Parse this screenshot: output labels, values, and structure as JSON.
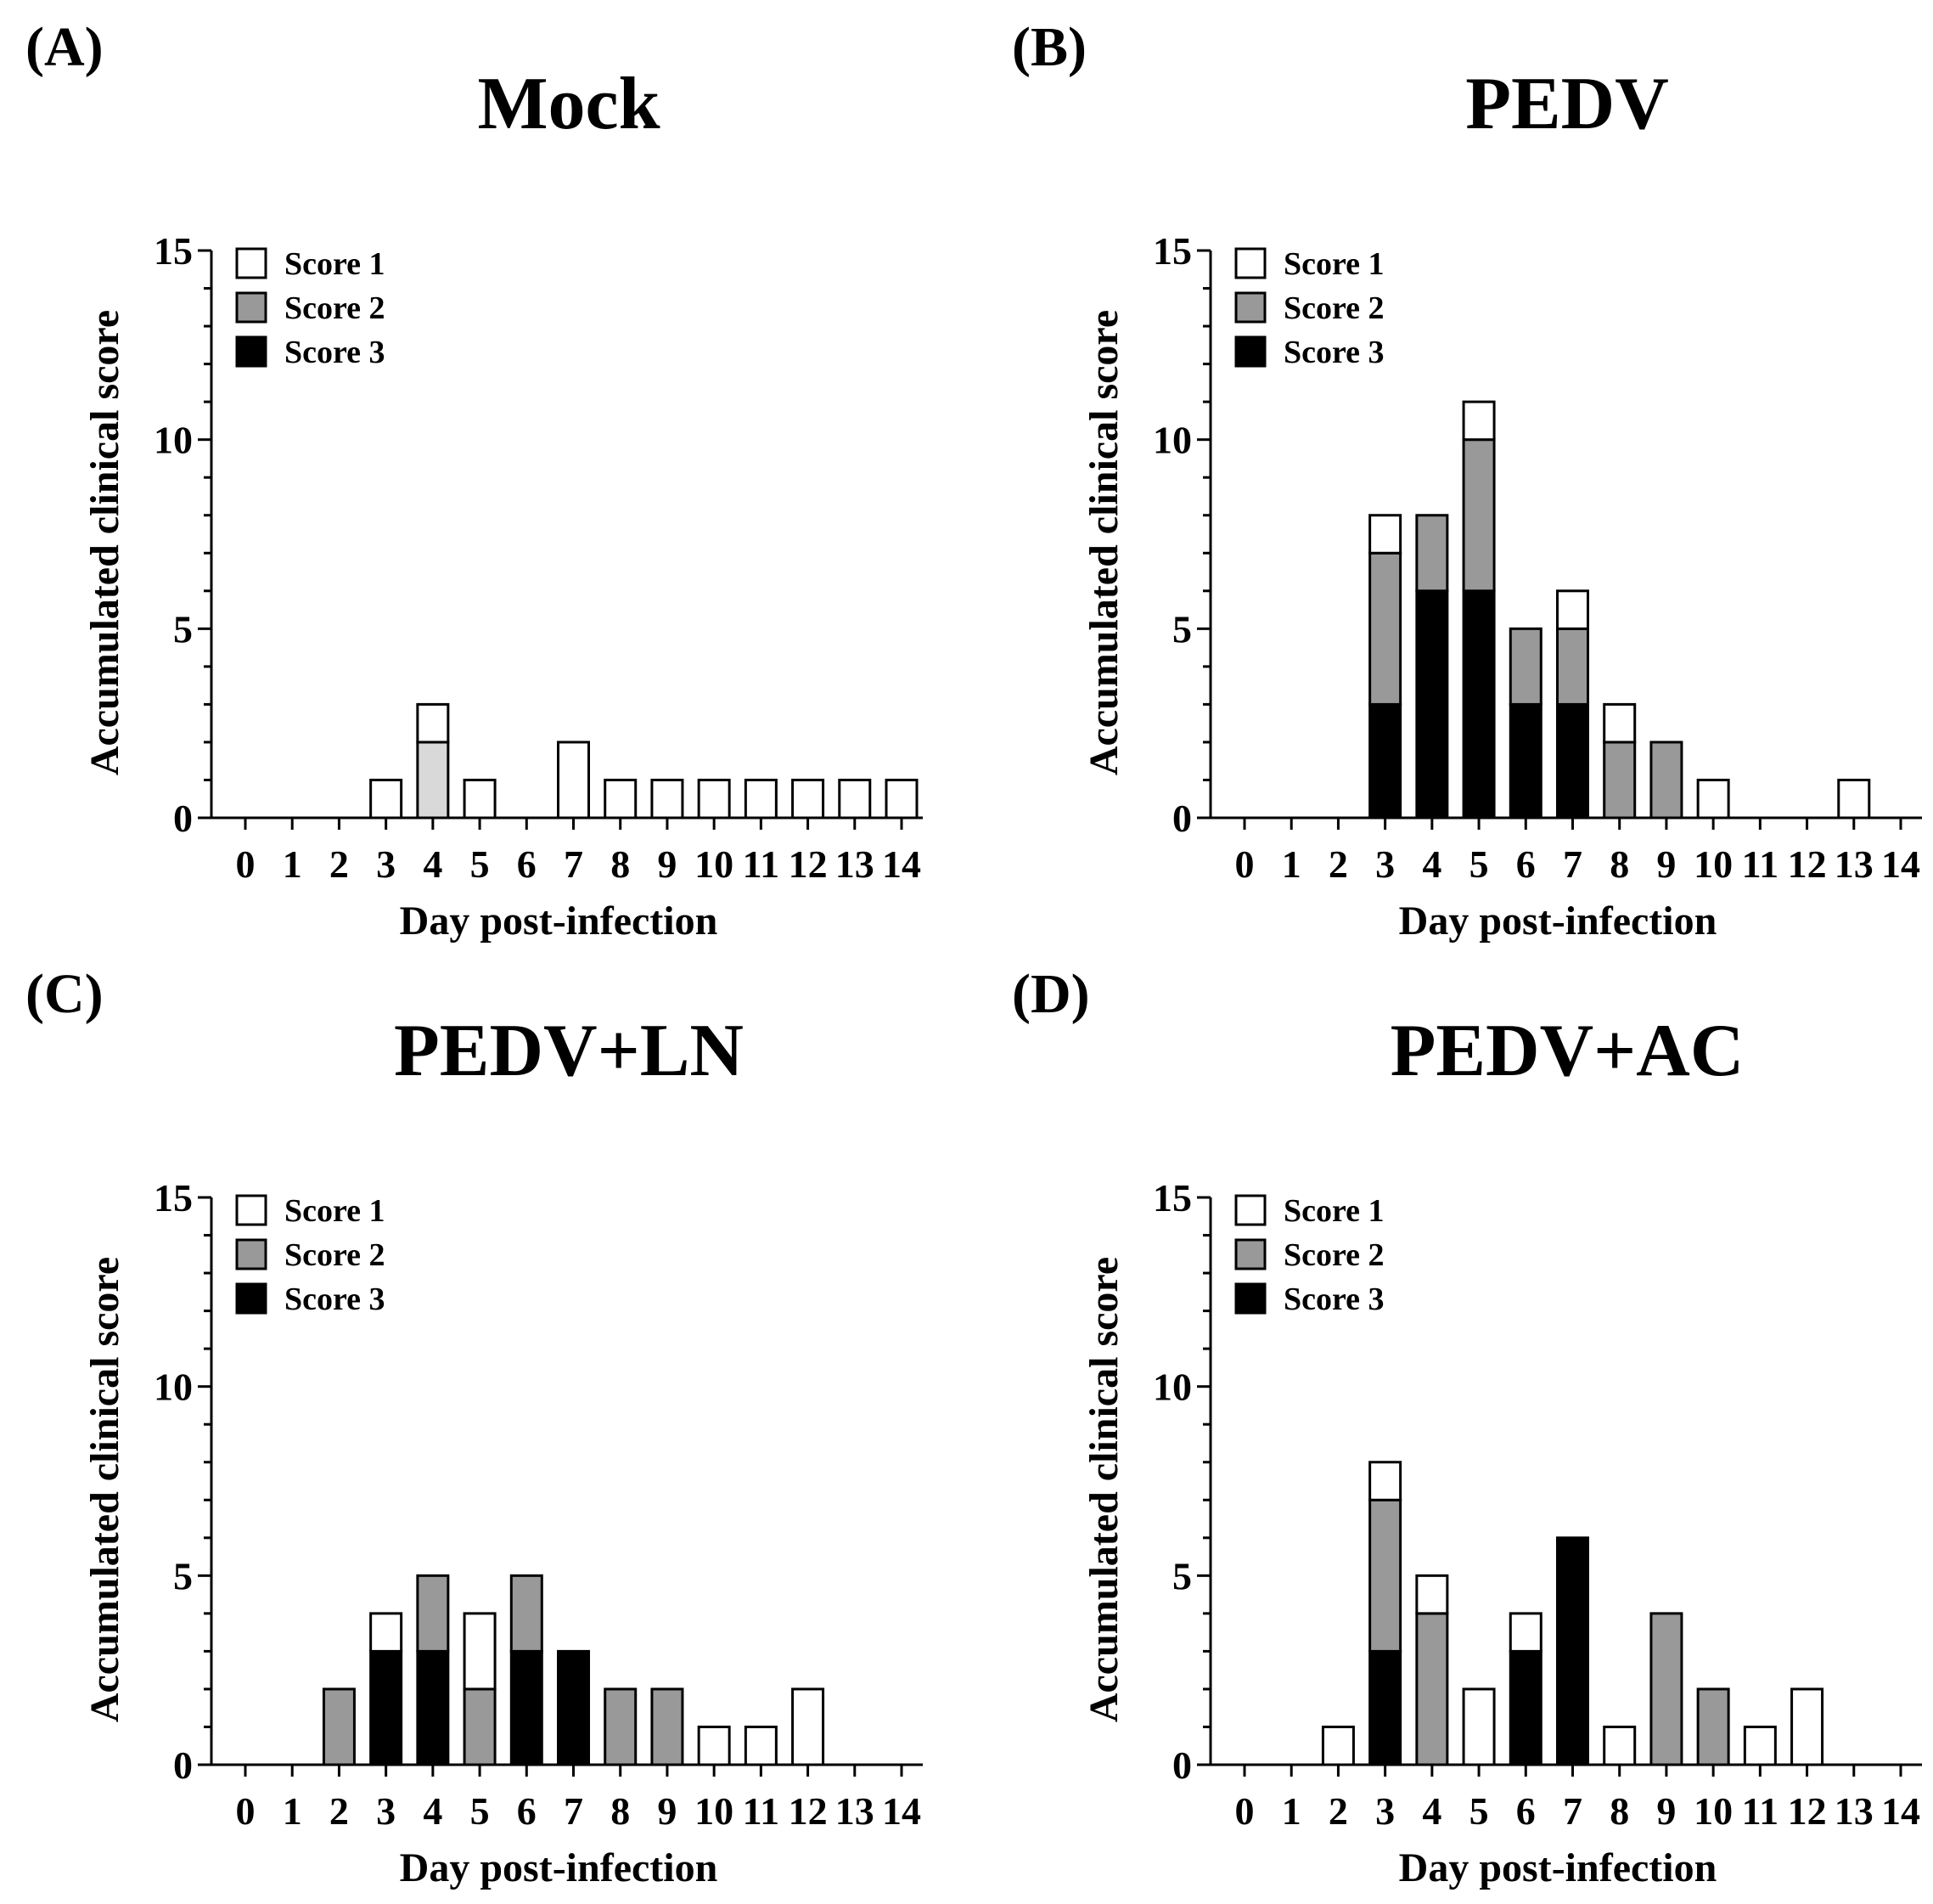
{
  "figure": {
    "panels": [
      {
        "letter": "(A)",
        "title": "Mock"
      },
      {
        "letter": "(B)",
        "title": "PEDV"
      },
      {
        "letter": "(C)",
        "title": "PEDV+LN"
      },
      {
        "letter": "(D)",
        "title": "PEDV+AC"
      }
    ]
  },
  "colors": {
    "score1": "#ffffff",
    "score2": "#999999",
    "score2_light": "#d9d9d9",
    "score3": "#000000",
    "stroke": "#000000"
  },
  "chart_data": [
    {
      "type": "bar",
      "stacked": true,
      "title": "Mock",
      "xlabel": "Day post-infection",
      "ylabel": "Accumulated clinical score",
      "ylim": [
        0,
        15
      ],
      "yticks": [
        0,
        5,
        10,
        15
      ],
      "categories": [
        "0",
        "1",
        "2",
        "3",
        "4",
        "5",
        "6",
        "7",
        "8",
        "9",
        "10",
        "11",
        "12",
        "13",
        "14"
      ],
      "legend": [
        "Score 1",
        "Score 2",
        "Score 3"
      ],
      "legend_position": "top-left",
      "series": [
        {
          "name": "Score 3",
          "values": [
            0,
            0,
            0,
            0,
            0,
            0,
            0,
            0,
            0,
            0,
            0,
            0,
            0,
            0,
            0
          ]
        },
        {
          "name": "Score 2",
          "values": [
            0,
            0,
            0,
            0,
            2,
            0,
            0,
            0,
            0,
            0,
            0,
            0,
            0,
            0,
            0
          ]
        },
        {
          "name": "Score 1",
          "values": [
            0,
            0,
            0,
            1,
            1,
            1,
            0,
            2,
            1,
            1,
            1,
            1,
            1,
            1,
            1
          ]
        }
      ]
    },
    {
      "type": "bar",
      "stacked": true,
      "title": "PEDV",
      "xlabel": "Day post-infection",
      "ylabel": "Accumulated clinical score",
      "ylim": [
        0,
        15
      ],
      "yticks": [
        0,
        5,
        10,
        15
      ],
      "categories": [
        "0",
        "1",
        "2",
        "3",
        "4",
        "5",
        "6",
        "7",
        "8",
        "9",
        "10",
        "11",
        "12",
        "13",
        "14"
      ],
      "legend": [
        "Score 1",
        "Score 2",
        "Score 3"
      ],
      "legend_position": "top-left",
      "series": [
        {
          "name": "Score 3",
          "values": [
            0,
            0,
            0,
            3,
            6,
            6,
            3,
            3,
            0,
            0,
            0,
            0,
            0,
            0,
            0
          ]
        },
        {
          "name": "Score 2",
          "values": [
            0,
            0,
            0,
            4,
            2,
            4,
            2,
            2,
            2,
            2,
            0,
            0,
            0,
            0,
            0
          ]
        },
        {
          "name": "Score 1",
          "values": [
            0,
            0,
            0,
            1,
            0,
            1,
            0,
            1,
            1,
            0,
            1,
            0,
            0,
            1,
            0
          ]
        }
      ]
    },
    {
      "type": "bar",
      "stacked": true,
      "title": "PEDV+LN",
      "xlabel": "Day post-infection",
      "ylabel": "Accumulated clinical score",
      "ylim": [
        0,
        15
      ],
      "yticks": [
        0,
        5,
        10,
        15
      ],
      "categories": [
        "0",
        "1",
        "2",
        "3",
        "4",
        "5",
        "6",
        "7",
        "8",
        "9",
        "10",
        "11",
        "12",
        "13",
        "14"
      ],
      "legend": [
        "Score 1",
        "Score 2",
        "Score 3"
      ],
      "legend_position": "top-left",
      "series": [
        {
          "name": "Score 3",
          "values": [
            0,
            0,
            0,
            3,
            3,
            0,
            3,
            3,
            0,
            0,
            0,
            0,
            0,
            0,
            0
          ]
        },
        {
          "name": "Score 2",
          "values": [
            0,
            0,
            2,
            0,
            2,
            2,
            2,
            0,
            2,
            2,
            0,
            0,
            0,
            0,
            0
          ]
        },
        {
          "name": "Score 1",
          "values": [
            0,
            0,
            0,
            1,
            0,
            2,
            0,
            0,
            0,
            0,
            1,
            1,
            2,
            0,
            0
          ]
        }
      ]
    },
    {
      "type": "bar",
      "stacked": true,
      "title": "PEDV+AC",
      "xlabel": "Day post-infection",
      "ylabel": "Accumulated clinical score",
      "ylim": [
        0,
        15
      ],
      "yticks": [
        0,
        5,
        10,
        15
      ],
      "categories": [
        "0",
        "1",
        "2",
        "3",
        "4",
        "5",
        "6",
        "7",
        "8",
        "9",
        "10",
        "11",
        "12",
        "13",
        "14"
      ],
      "legend": [
        "Score 1",
        "Score 2",
        "Score 3"
      ],
      "legend_position": "top-left",
      "series": [
        {
          "name": "Score 3",
          "values": [
            0,
            0,
            0,
            3,
            0,
            0,
            3,
            6,
            0,
            0,
            0,
            0,
            0,
            0,
            0
          ]
        },
        {
          "name": "Score 2",
          "values": [
            0,
            0,
            0,
            4,
            4,
            0,
            0,
            0,
            0,
            4,
            2,
            0,
            0,
            0,
            0
          ]
        },
        {
          "name": "Score 1",
          "values": [
            0,
            0,
            1,
            1,
            1,
            2,
            1,
            0,
            1,
            0,
            0,
            1,
            2,
            0,
            0
          ]
        }
      ]
    }
  ]
}
